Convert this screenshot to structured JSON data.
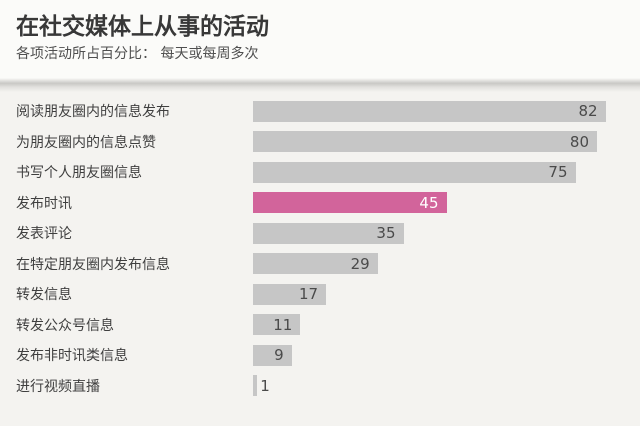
{
  "header": {
    "title": "在社交媒体上从事的活动",
    "subtitle": "各项活动所占百分比： 每天或每周多次"
  },
  "chart_data": {
    "type": "bar",
    "orientation": "horizontal",
    "title": "在社交媒体上从事的活动",
    "subtitle": "各项活动所占百分比： 每天或每周多次",
    "categories": [
      "阅读朋友圈内的信息发布",
      "为朋友圈内的信息点赞",
      "书写个人朋友圈信息",
      "发布时讯",
      "发表评论",
      "在特定朋友圈内发布信息",
      "转发信息",
      "转发公众号信息",
      "发布非时讯类信息",
      "进行视频直播"
    ],
    "values": [
      82,
      80,
      75,
      45,
      35,
      29,
      17,
      11,
      9,
      1
    ],
    "highlighted_category": "发布时讯",
    "value_labels_shown": true,
    "xlim": [
      0,
      85
    ],
    "grid": false,
    "legend": false,
    "colors": {
      "bar_default": "#c6c6c6",
      "bar_highlight": "#d2649b",
      "value_label_default": "#4a4a4a",
      "value_label_highlight": "#ffffff",
      "background": "#f4f3f0",
      "header_background": "#fbfbf9"
    }
  }
}
